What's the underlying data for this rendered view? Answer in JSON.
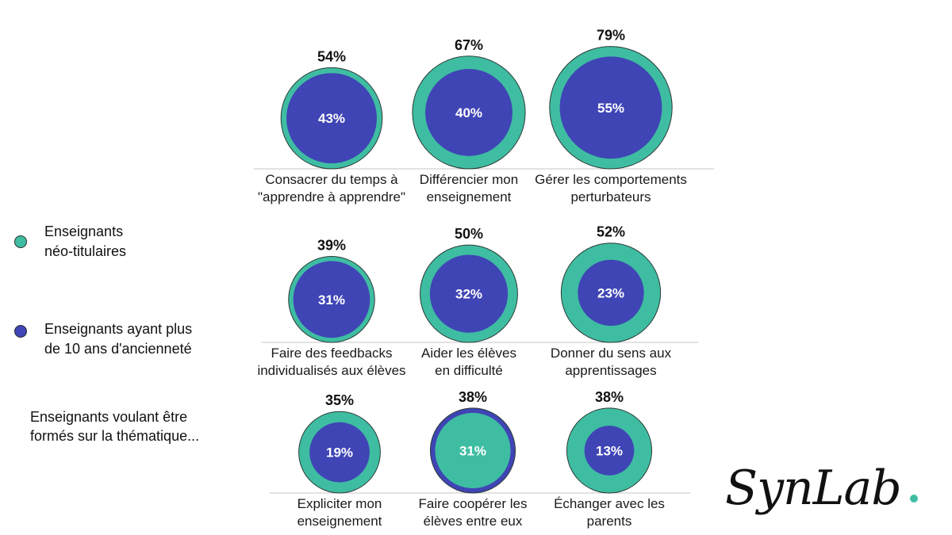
{
  "colors": {
    "teal": "#3fbda2",
    "indigo": "#3f45b5",
    "outline": "#2b3a35",
    "divider": "#c7c7c7",
    "logo_dot": "#3fbda2"
  },
  "legend": {
    "neo": "Enseignants\nnéo-titulaires",
    "ancien": "Enseignants  ayant plus\nde 10 ans d'ancienneté",
    "note": "Enseignants  voulant être\nformés  sur la thématique..."
  },
  "logo": {
    "text": "SynLab"
  },
  "chart_data": {
    "type": "nested-bubble",
    "series": [
      {
        "name": "Enseignants néo-titulaires"
      },
      {
        "name": "Enseignants ayant plus de 10 ans d'ancienneté"
      }
    ],
    "categories": [
      {
        "label": "Consacrer du temps à\n\"apprendre à apprendre\"",
        "neo": 54,
        "ancien": 43,
        "neo_label": "54%",
        "ancien_label": "43%"
      },
      {
        "label": "Différencier mon\nenseignement",
        "neo": 67,
        "ancien": 40,
        "neo_label": "67%",
        "ancien_label": "40%"
      },
      {
        "label": "Gérer les comportements\nperturbateurs",
        "neo": 79,
        "ancien": 55,
        "neo_label": "79%",
        "ancien_label": "55%"
      },
      {
        "label": "Faire des feedbacks\nindividualisés aux élèves",
        "neo": 39,
        "ancien": 31,
        "neo_label": "39%",
        "ancien_label": "31%"
      },
      {
        "label": "Aider les élèves\nen difficulté",
        "neo": 50,
        "ancien": 32,
        "neo_label": "50%",
        "ancien_label": "32%"
      },
      {
        "label": "Donner du sens aux\napprentissages",
        "neo": 52,
        "ancien": 23,
        "neo_label": "52%",
        "ancien_label": "23%"
      },
      {
        "label": "Expliciter mon\nenseignement",
        "neo": 35,
        "ancien": 19,
        "neo_label": "35%",
        "ancien_label": "19%"
      },
      {
        "label": "Faire coopérer les\nélèves entre eux",
        "neo": 38,
        "ancien": 31,
        "neo_label": "38%",
        "ancien_label": "31%"
      },
      {
        "label": "Échanger avec les\nparents",
        "neo": 38,
        "ancien": 13,
        "neo_label": "38%",
        "ancien_label": "13%"
      }
    ]
  }
}
